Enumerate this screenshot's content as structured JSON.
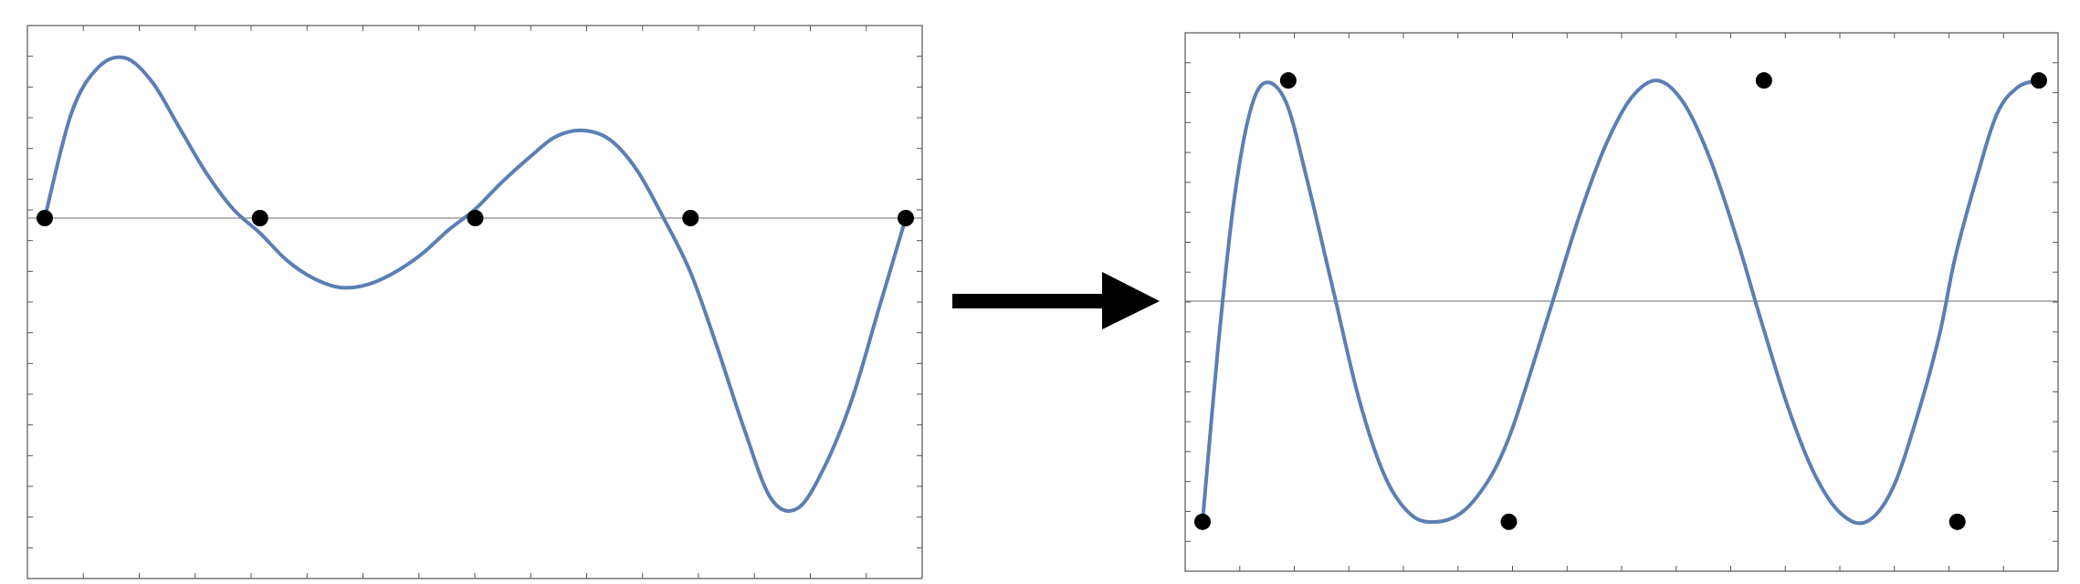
{
  "colors": {
    "curve": "#5b7fb3",
    "marker": "#000000",
    "axis": "#888888",
    "frame": "#555555",
    "arrow": "#000000"
  },
  "icons": {
    "arrow": "right-arrow-icon"
  },
  "chart_data": [
    {
      "type": "line",
      "xlim": [
        0,
        8
      ],
      "ylim": [
        -1.1,
        0.55
      ],
      "curve": {
        "x": [
          0,
          0.25,
          0.5,
          0.75,
          1.0,
          1.25,
          1.5,
          1.75,
          2.0,
          2.25,
          2.5,
          2.75,
          3.0,
          3.25,
          3.5,
          3.75,
          4.0,
          4.25,
          4.5,
          4.75,
          5.0,
          5.25,
          5.5,
          5.75,
          6.0,
          6.25,
          6.5,
          6.75,
          7.0,
          7.25,
          7.5,
          7.75,
          8.0
        ],
        "y": [
          0,
          0.35,
          0.5,
          0.53,
          0.45,
          0.3,
          0.15,
          0.03,
          -0.05,
          -0.14,
          -0.2,
          -0.23,
          -0.22,
          -0.18,
          -0.12,
          -0.04,
          0.03,
          0.12,
          0.2,
          0.27,
          0.29,
          0.26,
          0.16,
          0.0,
          -0.18,
          -0.43,
          -0.7,
          -0.93,
          -0.96,
          -0.82,
          -0.6,
          -0.3,
          0
        ]
      },
      "markers": {
        "x": [
          0,
          2,
          4,
          6,
          8
        ],
        "y": [
          0,
          0,
          0,
          0,
          0
        ]
      }
    },
    {
      "type": "line",
      "xlim": [
        0,
        8
      ],
      "ylim": [
        -1.1,
        1.1
      ],
      "curve": {
        "x": [
          0,
          0.15,
          0.3,
          0.45,
          0.6,
          0.8,
          1.0,
          1.25,
          1.5,
          1.75,
          2.0,
          2.25,
          2.5,
          2.75,
          2.93,
          3.1,
          3.35,
          3.6,
          3.85,
          4.1,
          4.35,
          4.6,
          4.85,
          5.1,
          5.35,
          5.6,
          5.85,
          6.1,
          6.35,
          6.6,
          6.85,
          7.05,
          7.2,
          7.4,
          7.6,
          7.8,
          8.0
        ],
        "y": [
          -1,
          -0.2,
          0.45,
          0.85,
          0.99,
          0.9,
          0.55,
          0.05,
          -0.45,
          -0.8,
          -0.97,
          -1.0,
          -0.95,
          -0.8,
          -0.62,
          -0.38,
          0.0,
          0.38,
          0.7,
          0.92,
          1.0,
          0.9,
          0.65,
          0.3,
          -0.1,
          -0.48,
          -0.78,
          -0.96,
          -1.0,
          -0.85,
          -0.5,
          -0.15,
          0.2,
          0.55,
          0.85,
          0.97,
          1.0
        ]
      },
      "markers": {
        "x": [
          0,
          0.82,
          2.93,
          5.37,
          7.22,
          8.0
        ],
        "y": [
          -1,
          1,
          -1,
          1,
          -1,
          1
        ]
      }
    }
  ]
}
